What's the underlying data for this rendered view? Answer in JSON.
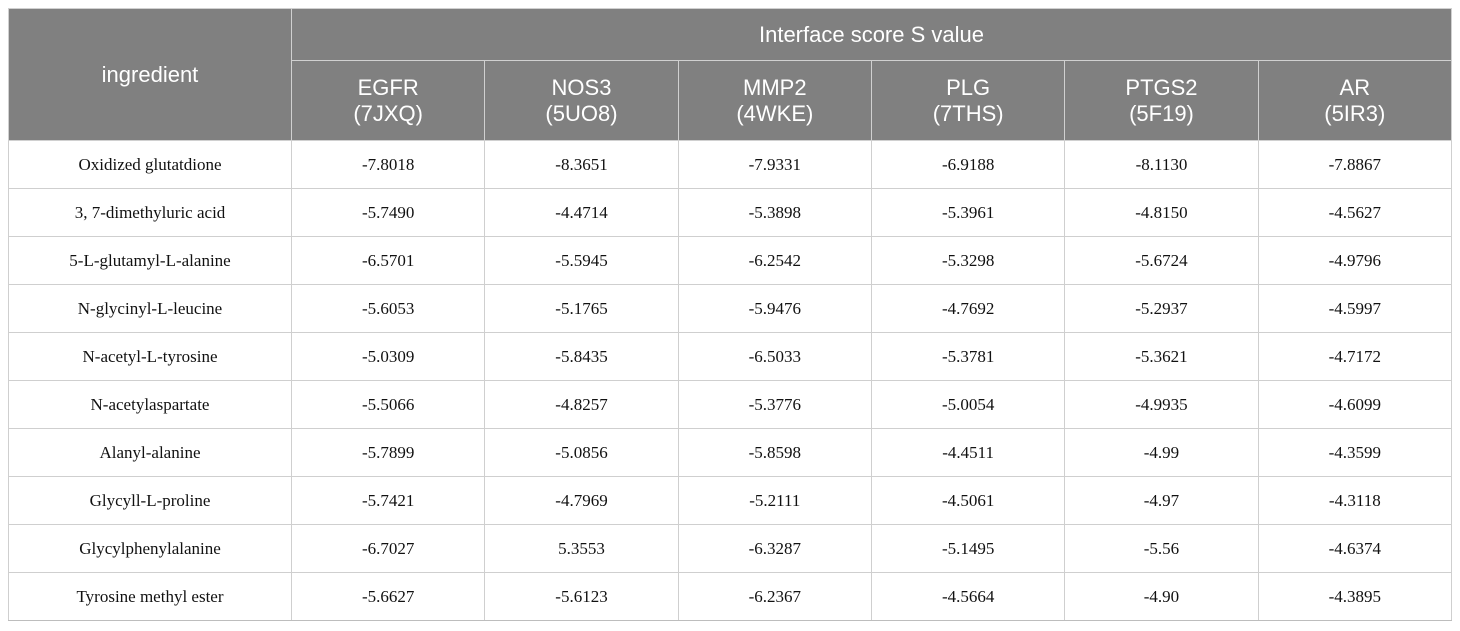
{
  "header": {
    "ingredient": "ingredient",
    "group": "Interface score S value",
    "columns": [
      {
        "name": "EGFR",
        "pdb": "(7JXQ)"
      },
      {
        "name": "NOS3",
        "pdb": "(5UO8)"
      },
      {
        "name": "MMP2",
        "pdb": "(4WKE)"
      },
      {
        "name": "PLG",
        "pdb": "(7THS)"
      },
      {
        "name": "PTGS2",
        "pdb": "(5F19)"
      },
      {
        "name": "AR",
        "pdb": "(5IR3)"
      }
    ]
  },
  "table": {
    "rows": [
      {
        "ingredient": "Oxidized glutatdione",
        "values": [
          "-7.8018",
          "-8.3651",
          "-7.9331",
          "-6.9188",
          "-8.1130",
          "-7.8867"
        ]
      },
      {
        "ingredient": "3, 7-dimethyluric acid",
        "values": [
          "-5.7490",
          "-4.4714",
          "-5.3898",
          "-5.3961",
          "-4.8150",
          "-4.5627"
        ]
      },
      {
        "ingredient": "5-L-glutamyl-L-alanine",
        "values": [
          "-6.5701",
          "-5.5945",
          "-6.2542",
          "-5.3298",
          "-5.6724",
          "-4.9796"
        ]
      },
      {
        "ingredient": "N-glycinyl-L-leucine",
        "values": [
          "-5.6053",
          "-5.1765",
          "-5.9476",
          "-4.7692",
          "-5.2937",
          "-4.5997"
        ]
      },
      {
        "ingredient": "N-acetyl-L-tyrosine",
        "values": [
          "-5.0309",
          "-5.8435",
          "-6.5033",
          "-5.3781",
          "-5.3621",
          "-4.7172"
        ]
      },
      {
        "ingredient": "N-acetylaspartate",
        "values": [
          "-5.5066",
          "-4.8257",
          "-5.3776",
          "-5.0054",
          "-4.9935",
          "-4.6099"
        ]
      },
      {
        "ingredient": "Alanyl-alanine",
        "values": [
          "-5.7899",
          "-5.0856",
          "-5.8598",
          "-4.4511",
          "-4.99",
          "-4.3599"
        ]
      },
      {
        "ingredient": "Glycyll-L-proline",
        "values": [
          "-5.7421",
          "-4.7969",
          "-5.2111",
          "-4.5061",
          "-4.97",
          "-4.3118"
        ]
      },
      {
        "ingredient": "Glycylphenylalanine",
        "values": [
          "-6.7027",
          "5.3553",
          "-6.3287",
          "-5.1495",
          "-5.56",
          "-4.6374"
        ]
      },
      {
        "ingredient": "Tyrosine methyl ester",
        "values": [
          "-5.6627",
          "-5.6123",
          "-6.2367",
          "-4.5664",
          "-4.90",
          "-4.3895"
        ]
      }
    ]
  }
}
